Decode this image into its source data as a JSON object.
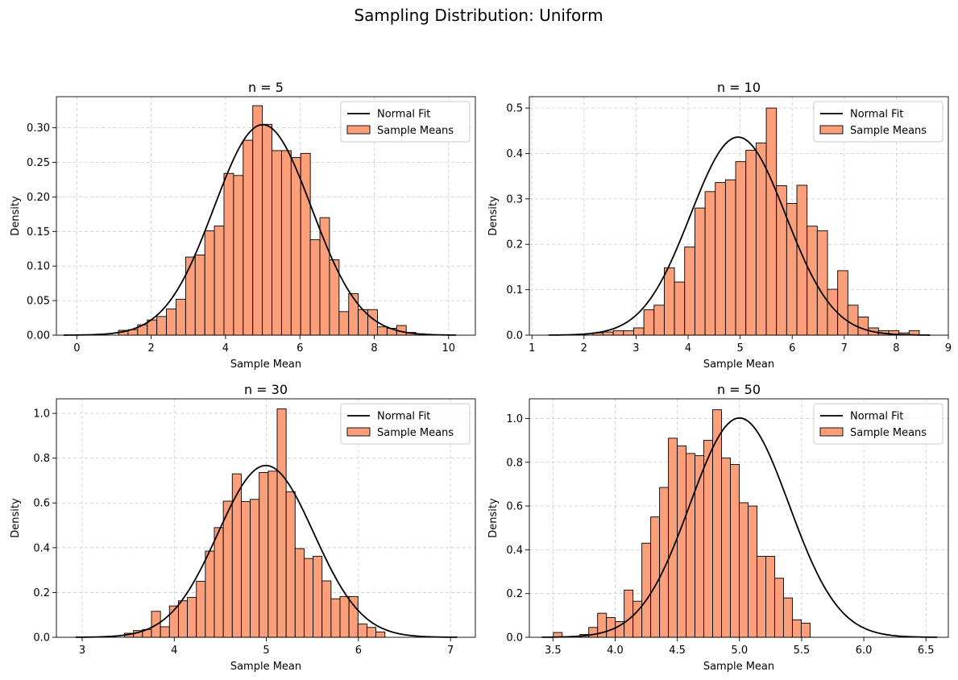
{
  "figure": {
    "title": "Sampling Distribution: Uniform"
  },
  "chart_data": [
    {
      "type": "bar",
      "title": "n = 5",
      "xlabel": "Sample Mean",
      "ylabel": "Density",
      "xlim": [
        -0.55,
        10.72
      ],
      "ylim": [
        0,
        0.345
      ],
      "xticks": [
        0,
        2,
        4,
        6,
        8,
        10
      ],
      "xtick_labels": [
        "0",
        "2",
        "4",
        "6",
        "8",
        "10"
      ],
      "yticks": [
        0,
        0.05,
        0.1,
        0.15,
        0.2,
        0.25,
        0.3
      ],
      "ytick_labels": [
        "0.00",
        "0.05",
        "0.10",
        "0.15",
        "0.20",
        "0.25",
        "0.30"
      ],
      "grid": true,
      "legend_position": "top-right",
      "legend": [
        "Normal Fit",
        "Sample Means"
      ],
      "hist": {
        "series_name": "Sample Means",
        "bin_start": 1.12,
        "bin_width": 0.258,
        "values": [
          0.007,
          0.008,
          0.015,
          0.022,
          0.027,
          0.038,
          0.052,
          0.113,
          0.116,
          0.151,
          0.158,
          0.234,
          0.231,
          0.282,
          0.332,
          0.305,
          0.267,
          0.267,
          0.257,
          0.263,
          0.138,
          0.17,
          0.109,
          0.034,
          0.06,
          0.037,
          0.037,
          0.012,
          0.01,
          0.014,
          0.004,
          0.002
        ]
      },
      "fit": {
        "series_name": "Normal Fit",
        "mean": 5.0,
        "std": 1.31,
        "x_range": [
          -0.35,
          10.2
        ]
      }
    },
    {
      "type": "bar",
      "title": "n = 10",
      "xlabel": "Sample Mean",
      "ylabel": "Density",
      "xlim": [
        0.95,
        9.0
      ],
      "ylim": [
        0,
        0.525
      ],
      "xticks": [
        1,
        2,
        3,
        4,
        5,
        6,
        7,
        8,
        9
      ],
      "xtick_labels": [
        "1",
        "2",
        "3",
        "4",
        "5",
        "6",
        "7",
        "8",
        "9"
      ],
      "yticks": [
        0,
        0.1,
        0.2,
        0.3,
        0.4,
        0.5
      ],
      "ytick_labels": [
        "0.0",
        "0.1",
        "0.2",
        "0.3",
        "0.4",
        "0.5"
      ],
      "grid": true,
      "legend_position": "top-right",
      "legend": [
        "Normal Fit",
        "Sample Means"
      ],
      "hist": {
        "series_name": "Sample Means",
        "bin_start": 2.17,
        "bin_width": 0.196,
        "values": [
          0.005,
          0.007,
          0.01,
          0.01,
          0.016,
          0.056,
          0.066,
          0.148,
          0.117,
          0.194,
          0.28,
          0.316,
          0.336,
          0.342,
          0.382,
          0.407,
          0.423,
          0.5,
          0.329,
          0.29,
          0.33,
          0.24,
          0.23,
          0.101,
          0.142,
          0.066,
          0.04,
          0.016,
          0.01,
          0.01,
          0.005,
          0.01
        ]
      },
      "fit": {
        "series_name": "Normal Fit",
        "mean": 4.96,
        "std": 0.915,
        "x_range": [
          1.32,
          8.65
        ]
      }
    },
    {
      "type": "bar",
      "title": "n = 30",
      "xlabel": "Sample Mean",
      "ylabel": "Density",
      "xlim": [
        2.72,
        7.27
      ],
      "ylim": [
        0,
        1.065
      ],
      "xticks": [
        3,
        4,
        5,
        6,
        7
      ],
      "xtick_labels": [
        "3",
        "4",
        "5",
        "6",
        "7"
      ],
      "yticks": [
        0,
        0.2,
        0.4,
        0.6,
        0.8,
        1.0
      ],
      "ytick_labels": [
        "0.0",
        "0.2",
        "0.4",
        "0.6",
        "0.8",
        "1.0"
      ],
      "grid": true,
      "legend_position": "top-right",
      "legend": [
        "Normal Fit",
        "Sample Means"
      ],
      "hist": {
        "series_name": "Sample Means",
        "bin_start": 3.46,
        "bin_width": 0.0975,
        "values": [
          0.018,
          0.03,
          0.035,
          0.116,
          0.047,
          0.14,
          0.163,
          0.178,
          0.25,
          0.385,
          0.49,
          0.608,
          0.73,
          0.606,
          0.616,
          0.736,
          0.742,
          1.02,
          0.65,
          0.396,
          0.352,
          0.362,
          0.252,
          0.172,
          0.182,
          0.182,
          0.06,
          0.044,
          0.024
        ]
      },
      "fit": {
        "series_name": "Normal Fit",
        "mean": 4.995,
        "std": 0.52,
        "x_range": [
          2.93,
          7.07
        ]
      }
    },
    {
      "type": "bar",
      "title": "n = 50",
      "xlabel": "Sample Mean",
      "ylabel": "Density",
      "xlim": [
        3.31,
        6.68
      ],
      "ylim": [
        0,
        1.09
      ],
      "xticks": [
        3.5,
        4.0,
        4.5,
        5.0,
        5.5,
        6.0,
        6.5
      ],
      "xtick_labels": [
        "3.5",
        "4.0",
        "4.5",
        "5.0",
        "5.5",
        "6.0",
        "6.5"
      ],
      "yticks": [
        0,
        0.2,
        0.4,
        0.6,
        0.8,
        1.0
      ],
      "ytick_labels": [
        "0.0",
        "0.2",
        "0.4",
        "0.6",
        "0.8",
        "1.0"
      ],
      "grid": true,
      "legend_position": "top-right",
      "legend": [
        "Normal Fit",
        "Sample Means"
      ],
      "hist": {
        "series_name": "Sample Means",
        "bin_start": 3.503,
        "bin_width": 0.0712,
        "values": [
          0.022,
          0,
          0,
          0.013,
          0.045,
          0.11,
          0.09,
          0.072,
          0.216,
          0.165,
          0.43,
          0.55,
          0.685,
          0.91,
          0.875,
          0.84,
          0.83,
          0.9,
          1.04,
          0.82,
          0.79,
          0.615,
          0.6,
          0.37,
          0.37,
          0.27,
          0.18,
          0.08,
          0.065
        ]
      },
      "fit": {
        "series_name": "Normal Fit",
        "mean": 5.0,
        "std": 0.398,
        "x_range": [
          3.41,
          6.59
        ]
      }
    }
  ]
}
